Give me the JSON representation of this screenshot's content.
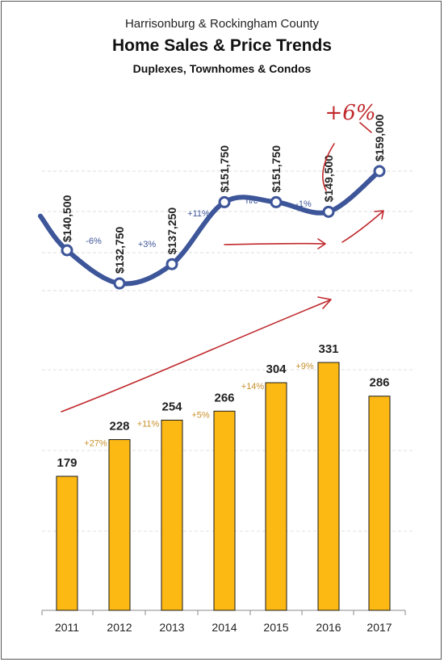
{
  "chart_data": {
    "type": "bar+line",
    "title_top": "Harrisonburg & Rockingham County",
    "title": "Home Sales & Price Trends",
    "subtitle": "Duplexes, Townhomes & Condos",
    "categories": [
      "2011",
      "2012",
      "2013",
      "2014",
      "2015",
      "2016",
      "2017"
    ],
    "bar_series": {
      "values": [
        179,
        228,
        254,
        266,
        304,
        331,
        286
      ],
      "labels": [
        "179",
        "228",
        "254",
        "266",
        "304",
        "331",
        "286"
      ],
      "changes": [
        "",
        "+27%",
        "+11%",
        "+5%",
        "+14%",
        "+9%",
        ""
      ],
      "color": "#FDB913",
      "change_color": "#C8902A",
      "ylim": [
        0,
        400
      ]
    },
    "line_series": {
      "values": [
        140500,
        132750,
        137250,
        151750,
        151750,
        149500,
        159000
      ],
      "labels": [
        "$140,500",
        "$132,750",
        "$137,250",
        "$151,750",
        "$151,750",
        "$149,500",
        "$159,000"
      ],
      "changes": [
        "-6%",
        "+3%",
        "+11%",
        "n/c",
        "-1%"
      ],
      "color": "#3D5599",
      "ylim": [
        125000,
        170000
      ]
    },
    "annotations": {
      "handwritten_note": "+6%",
      "annotation_color": "#C0282C"
    },
    "grid": true,
    "legend": "none"
  }
}
